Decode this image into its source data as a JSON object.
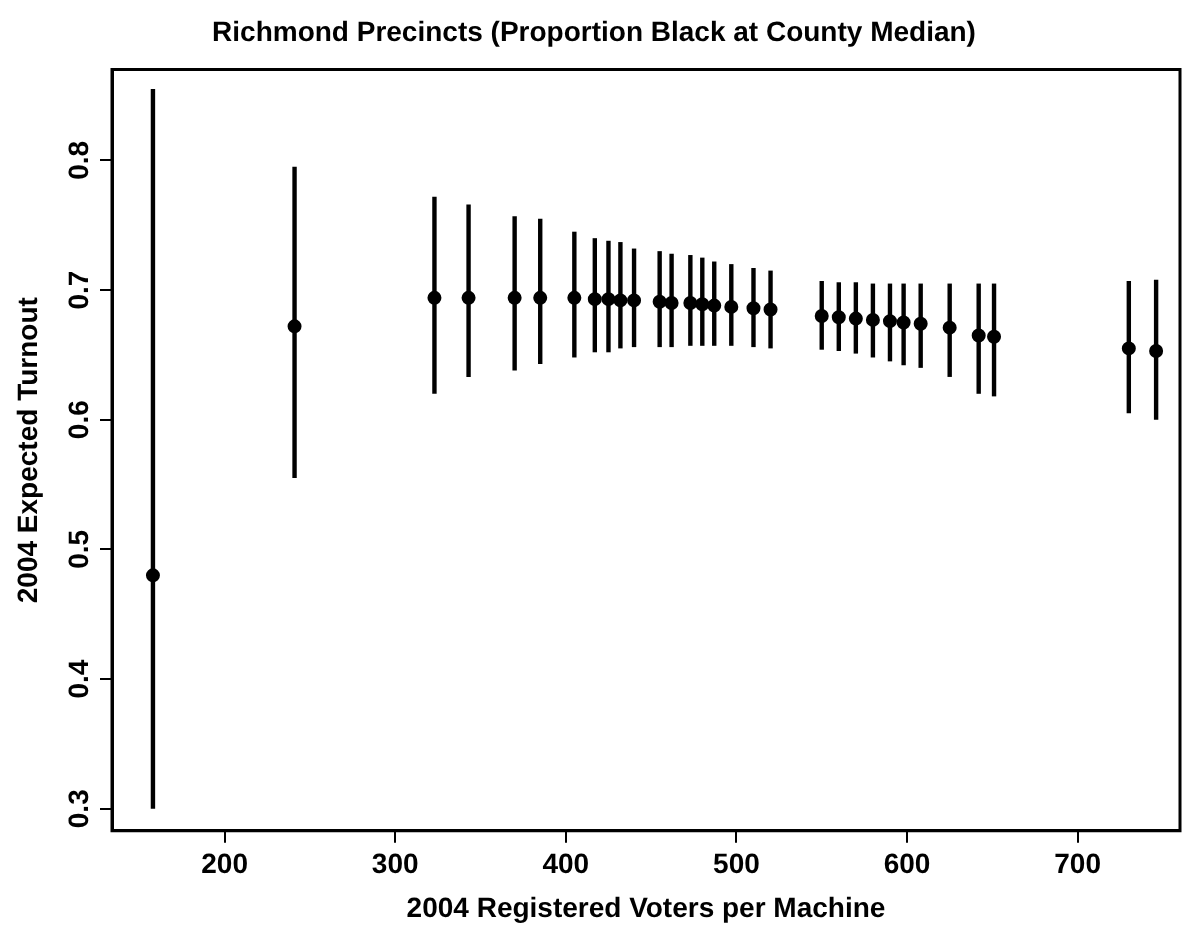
{
  "chart_data": {
    "type": "scatter",
    "title": "Richmond Precincts (Proportion Black at County Median)",
    "xlabel": "2004 Registered Voters per Machine",
    "ylabel": "2004 Expected Turnout",
    "x": [
      158,
      241,
      323,
      343,
      370,
      385,
      405,
      417,
      425,
      432,
      440,
      455,
      462,
      473,
      480,
      487,
      497,
      510,
      520,
      550,
      560,
      570,
      580,
      590,
      598,
      608,
      625,
      642,
      651,
      730,
      746
    ],
    "series": [
      {
        "color": "#000000",
        "values": [
          0.48,
          0.672,
          0.694,
          0.694,
          0.694,
          0.694,
          0.694,
          0.693,
          0.693,
          0.692,
          0.692,
          0.691,
          0.69,
          0.69,
          0.689,
          0.688,
          0.687,
          0.686,
          0.685,
          0.68,
          0.679,
          0.678,
          0.677,
          0.676,
          0.675,
          0.674,
          0.671,
          0.665,
          0.664,
          0.655,
          0.653
        ],
        "errors": [
          [
            0.3,
            0.855
          ],
          [
            0.555,
            0.795
          ],
          [
            0.62,
            0.772
          ],
          [
            0.633,
            0.766
          ],
          [
            0.638,
            0.757
          ],
          [
            0.643,
            0.755
          ],
          [
            0.648,
            0.745
          ],
          [
            0.652,
            0.74
          ],
          [
            0.652,
            0.738
          ],
          [
            0.655,
            0.737
          ],
          [
            0.656,
            0.732
          ],
          [
            0.656,
            0.73
          ],
          [
            0.656,
            0.728
          ],
          [
            0.657,
            0.727
          ],
          [
            0.657,
            0.725
          ],
          [
            0.657,
            0.722
          ],
          [
            0.657,
            0.72
          ],
          [
            0.656,
            0.717
          ],
          [
            0.655,
            0.715
          ],
          [
            0.654,
            0.707
          ],
          [
            0.653,
            0.706
          ],
          [
            0.651,
            0.706
          ],
          [
            0.648,
            0.705
          ],
          [
            0.645,
            0.705
          ],
          [
            0.642,
            0.705
          ],
          [
            0.64,
            0.705
          ],
          [
            0.633,
            0.705
          ],
          [
            0.62,
            0.705
          ],
          [
            0.618,
            0.705
          ],
          [
            0.605,
            0.707
          ],
          [
            0.6,
            0.708
          ]
        ]
      }
    ],
    "xlim": [
      134,
      760
    ],
    "xticks": [
      200,
      300,
      400,
      500,
      600,
      700
    ],
    "ylim": [
      0.283,
      0.87
    ],
    "yticks": [
      0.3,
      0.4,
      0.5,
      0.6,
      0.7,
      0.8
    ],
    "marker": "circle",
    "grid": false,
    "legend": false
  }
}
